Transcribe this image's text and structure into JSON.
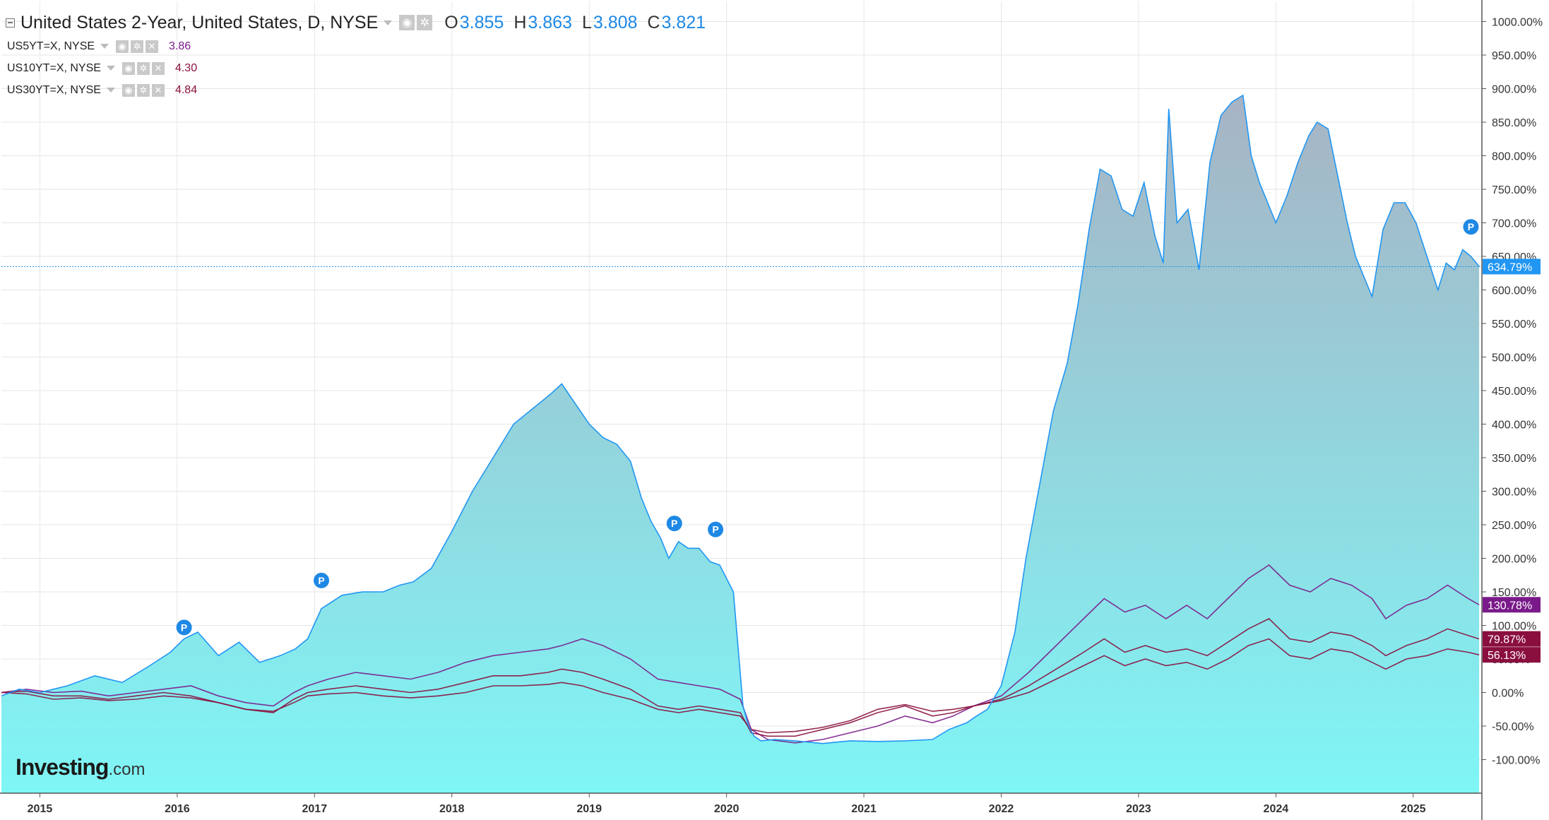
{
  "header": {
    "title": "United States 2-Year, United States, D, NYSE",
    "ohlc": [
      {
        "key": "O",
        "value": "3.855"
      },
      {
        "key": "H",
        "value": "3.863"
      },
      {
        "key": "L",
        "value": "3.808"
      },
      {
        "key": "C",
        "value": "3.821"
      }
    ]
  },
  "compare": [
    {
      "symbol": "US5YT=X, NYSE",
      "value": "3.86"
    },
    {
      "symbol": "US10YT=X, NYSE",
      "value": "4.30"
    },
    {
      "symbol": "US30YT=X, NYSE",
      "value": "4.84"
    }
  ],
  "brand": {
    "main": "Investing",
    "tld": ".com"
  },
  "colors": {
    "us2y_line": "#2196f3",
    "area_top": "#a7b3c4",
    "area_bottom": "#7ff6f6",
    "us5y": "#7a1a8a",
    "us10y": "#8a0f3e",
    "us30y": "#8a0f3e",
    "grid": "#e6e6e6"
  },
  "chart_data": {
    "type": "line",
    "y_axis_side": "right",
    "ylim": [
      -150,
      1030
    ],
    "yticks": [
      "1000.00%",
      "950.00%",
      "900.00%",
      "850.00%",
      "800.00%",
      "750.00%",
      "700.00%",
      "650.00%",
      "600.00%",
      "550.00%",
      "500.00%",
      "450.00%",
      "400.00%",
      "350.00%",
      "300.00%",
      "250.00%",
      "200.00%",
      "150.00%",
      "100.00%",
      "50.00%",
      "0.00%",
      "-50.00%",
      "-100.00%"
    ],
    "ytick_values": [
      1000,
      950,
      900,
      850,
      800,
      750,
      700,
      650,
      600,
      550,
      500,
      450,
      400,
      350,
      300,
      250,
      200,
      150,
      100,
      50,
      0,
      -50,
      -100
    ],
    "xlim": [
      2014.72,
      2025.5
    ],
    "xticks": [
      "2015",
      "2016",
      "2017",
      "2018",
      "2019",
      "2020",
      "2021",
      "2022",
      "2023",
      "2024",
      "2025"
    ],
    "xtick_values": [
      2015,
      2016,
      2017,
      2018,
      2019,
      2020,
      2021,
      2022,
      2023,
      2024,
      2025
    ],
    "grid": true,
    "last_value_labels": [
      {
        "series": "US2Y",
        "label": "634.79%",
        "value": 634.79
      },
      {
        "series": "US5YT=X",
        "label": "130.78%",
        "value": 130.78
      },
      {
        "series": "US10YT=X",
        "label": "79.87%",
        "value": 79.87
      },
      {
        "series": "US30YT=X",
        "label": "56.13%",
        "value": 56.13
      }
    ],
    "markers": [
      {
        "label": "P",
        "x": 2016.05,
        "y": 97
      },
      {
        "label": "P",
        "x": 2017.05,
        "y": 167
      },
      {
        "label": "P",
        "x": 2019.62,
        "y": 252
      },
      {
        "label": "P",
        "x": 2019.92,
        "y": 243
      },
      {
        "label": "P",
        "x": 2025.42,
        "y": 694
      }
    ],
    "series": [
      {
        "symbol": "US2Y",
        "style": "area",
        "x": [
          2014.72,
          2014.85,
          2015.0,
          2015.2,
          2015.4,
          2015.6,
          2015.8,
          2015.95,
          2016.05,
          2016.15,
          2016.3,
          2016.45,
          2016.6,
          2016.75,
          2016.86,
          2016.95,
          2017.05,
          2017.2,
          2017.35,
          2017.5,
          2017.62,
          2017.72,
          2017.85,
          2018.0,
          2018.15,
          2018.3,
          2018.45,
          2018.6,
          2018.72,
          2018.8,
          2018.9,
          2019.0,
          2019.1,
          2019.2,
          2019.3,
          2019.38,
          2019.45,
          2019.52,
          2019.58,
          2019.65,
          2019.72,
          2019.8,
          2019.88,
          2019.95,
          2020.05,
          2020.12,
          2020.16,
          2020.2,
          2020.25,
          2020.35,
          2020.5,
          2020.7,
          2020.9,
          2021.1,
          2021.3,
          2021.5,
          2021.62,
          2021.75,
          2021.82,
          2021.9,
          2022.0,
          2022.1,
          2022.18,
          2022.28,
          2022.38,
          2022.48,
          2022.56,
          2022.64,
          2022.72,
          2022.8,
          2022.88,
          2022.96,
          2023.04,
          2023.12,
          2023.18,
          2023.22,
          2023.28,
          2023.36,
          2023.44,
          2023.52,
          2023.6,
          2023.68,
          2023.76,
          2023.82,
          2023.88,
          2023.94,
          2024.0,
          2024.08,
          2024.16,
          2024.24,
          2024.3,
          2024.38,
          2024.46,
          2024.52,
          2024.58,
          2024.64,
          2024.7,
          2024.78,
          2024.86,
          2024.94,
          2025.02,
          2025.1,
          2025.18,
          2025.24,
          2025.3,
          2025.36,
          2025.42,
          2025.48
        ],
        "y": [
          -5,
          5,
          0,
          10,
          25,
          15,
          40,
          60,
          80,
          90,
          55,
          75,
          45,
          55,
          65,
          80,
          125,
          145,
          150,
          150,
          160,
          165,
          185,
          240,
          300,
          350,
          400,
          425,
          445,
          460,
          430,
          400,
          380,
          370,
          345,
          290,
          255,
          230,
          200,
          225,
          215,
          215,
          195,
          190,
          150,
          -20,
          -50,
          -65,
          -72,
          -70,
          -72,
          -76,
          -72,
          -73,
          -72,
          -70,
          -55,
          -45,
          -35,
          -25,
          10,
          90,
          200,
          310,
          420,
          490,
          580,
          690,
          780,
          770,
          720,
          710,
          760,
          680,
          640,
          870,
          700,
          720,
          630,
          790,
          860,
          880,
          890,
          800,
          760,
          730,
          700,
          740,
          790,
          830,
          850,
          840,
          760,
          700,
          650,
          620,
          590,
          690,
          730,
          730,
          700,
          650,
          600,
          640,
          630,
          660,
          650,
          634.79
        ]
      },
      {
        "symbol": "US5YT=X",
        "style": "line",
        "x": [
          2014.72,
          2014.9,
          2015.1,
          2015.3,
          2015.5,
          2015.7,
          2015.9,
          2016.1,
          2016.3,
          2016.5,
          2016.7,
          2016.85,
          2016.95,
          2017.1,
          2017.3,
          2017.5,
          2017.7,
          2017.9,
          2018.1,
          2018.3,
          2018.5,
          2018.7,
          2018.8,
          2018.95,
          2019.1,
          2019.3,
          2019.5,
          2019.65,
          2019.8,
          2019.95,
          2020.1,
          2020.18,
          2020.3,
          2020.5,
          2020.7,
          2020.9,
          2021.1,
          2021.3,
          2021.5,
          2021.65,
          2021.8,
          2022.0,
          2022.2,
          2022.4,
          2022.6,
          2022.75,
          2022.9,
          2023.05,
          2023.2,
          2023.35,
          2023.5,
          2023.65,
          2023.8,
          2023.95,
          2024.1,
          2024.25,
          2024.4,
          2024.55,
          2024.7,
          2024.8,
          2024.95,
          2025.1,
          2025.25,
          2025.4,
          2025.48
        ],
        "y": [
          0,
          5,
          0,
          2,
          -5,
          0,
          5,
          10,
          -5,
          -15,
          -20,
          0,
          10,
          20,
          30,
          25,
          20,
          30,
          45,
          55,
          60,
          65,
          70,
          80,
          70,
          50,
          20,
          15,
          10,
          5,
          -10,
          -55,
          -70,
          -75,
          -70,
          -60,
          -50,
          -35,
          -45,
          -35,
          -20,
          -5,
          30,
          70,
          110,
          140,
          120,
          130,
          110,
          130,
          110,
          140,
          170,
          190,
          160,
          150,
          170,
          160,
          140,
          110,
          130,
          140,
          160,
          140,
          130.78
        ]
      },
      {
        "symbol": "US10YT=X",
        "style": "line",
        "x": [
          2014.72,
          2014.9,
          2015.1,
          2015.3,
          2015.5,
          2015.7,
          2015.9,
          2016.1,
          2016.3,
          2016.5,
          2016.7,
          2016.85,
          2016.95,
          2017.1,
          2017.3,
          2017.5,
          2017.7,
          2017.9,
          2018.1,
          2018.3,
          2018.5,
          2018.7,
          2018.8,
          2018.95,
          2019.1,
          2019.3,
          2019.5,
          2019.65,
          2019.8,
          2019.95,
          2020.1,
          2020.18,
          2020.3,
          2020.5,
          2020.7,
          2020.9,
          2021.1,
          2021.3,
          2021.5,
          2021.65,
          2021.8,
          2022.0,
          2022.2,
          2022.4,
          2022.6,
          2022.75,
          2022.9,
          2023.05,
          2023.2,
          2023.35,
          2023.5,
          2023.65,
          2023.8,
          2023.95,
          2024.1,
          2024.25,
          2024.4,
          2024.55,
          2024.7,
          2024.8,
          2024.95,
          2025.1,
          2025.25,
          2025.4,
          2025.48
        ],
        "y": [
          0,
          2,
          -5,
          -5,
          -10,
          -5,
          0,
          -5,
          -15,
          -25,
          -30,
          -10,
          0,
          5,
          10,
          5,
          0,
          5,
          15,
          25,
          25,
          30,
          35,
          30,
          20,
          5,
          -20,
          -25,
          -20,
          -25,
          -30,
          -60,
          -65,
          -65,
          -55,
          -45,
          -30,
          -20,
          -35,
          -30,
          -20,
          -10,
          10,
          35,
          60,
          80,
          60,
          70,
          60,
          65,
          55,
          75,
          95,
          110,
          80,
          75,
          90,
          85,
          70,
          55,
          70,
          80,
          95,
          85,
          79.87
        ]
      },
      {
        "symbol": "US30YT=X",
        "style": "line",
        "x": [
          2014.72,
          2014.9,
          2015.1,
          2015.3,
          2015.5,
          2015.7,
          2015.9,
          2016.1,
          2016.3,
          2016.5,
          2016.7,
          2016.85,
          2016.95,
          2017.1,
          2017.3,
          2017.5,
          2017.7,
          2017.9,
          2018.1,
          2018.3,
          2018.5,
          2018.7,
          2018.8,
          2018.95,
          2019.1,
          2019.3,
          2019.5,
          2019.65,
          2019.8,
          2019.95,
          2020.1,
          2020.18,
          2020.3,
          2020.5,
          2020.7,
          2020.9,
          2021.1,
          2021.3,
          2021.5,
          2021.65,
          2021.8,
          2022.0,
          2022.2,
          2022.4,
          2022.6,
          2022.75,
          2022.9,
          2023.05,
          2023.2,
          2023.35,
          2023.5,
          2023.65,
          2023.8,
          2023.95,
          2024.1,
          2024.25,
          2024.4,
          2024.55,
          2024.7,
          2024.8,
          2024.95,
          2025.1,
          2025.25,
          2025.4,
          2025.48
        ],
        "y": [
          0,
          -2,
          -10,
          -8,
          -12,
          -10,
          -5,
          -8,
          -15,
          -25,
          -28,
          -15,
          -5,
          -2,
          0,
          -5,
          -8,
          -5,
          0,
          10,
          10,
          12,
          15,
          10,
          0,
          -10,
          -25,
          -30,
          -25,
          -30,
          -35,
          -55,
          -60,
          -58,
          -52,
          -42,
          -25,
          -18,
          -28,
          -25,
          -20,
          -12,
          0,
          20,
          40,
          55,
          40,
          50,
          40,
          45,
          35,
          50,
          70,
          80,
          55,
          50,
          65,
          60,
          45,
          35,
          50,
          55,
          65,
          60,
          56.13
        ]
      }
    ]
  }
}
